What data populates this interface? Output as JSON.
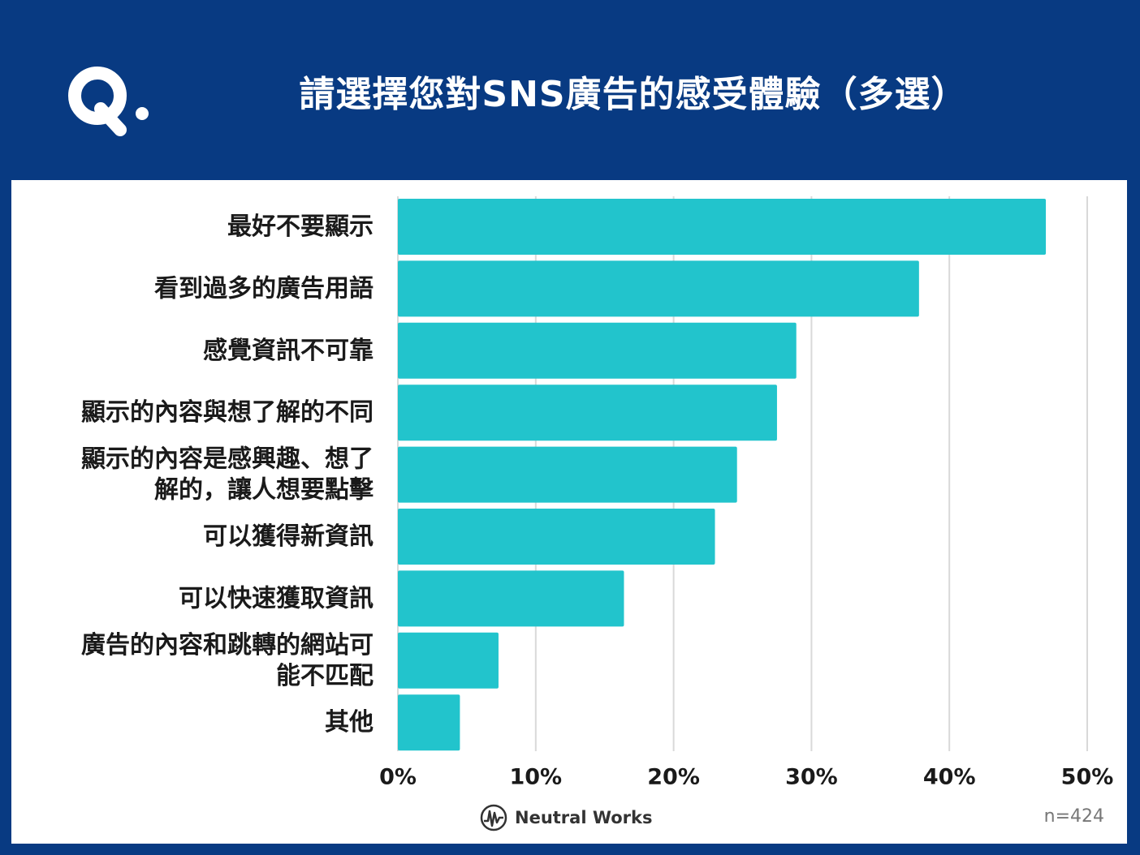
{
  "header": {
    "logo_text": "Q.",
    "title": "請選擇您對SNS廣告的感受體驗（多選）"
  },
  "footer": {
    "brand": "Neutral Works",
    "sample": "n=424"
  },
  "colors": {
    "background": "#083a82",
    "bar": "#22c4cc",
    "grid": "#d9d9d9",
    "panel": "#ffffff"
  },
  "chart_data": {
    "type": "bar",
    "orientation": "horizontal",
    "categories": [
      [
        "最好不要顯示"
      ],
      [
        "看到過多的廣告用語"
      ],
      [
        "感覺資訊不可靠"
      ],
      [
        "顯示的內容與想了解的不同"
      ],
      [
        "顯示的內容是感興趣、想了",
        "解的，讓人想要點擊"
      ],
      [
        "可以獲得新資訊"
      ],
      [
        "可以快速獲取資訊"
      ],
      [
        "廣告的內容和跳轉的網站可",
        "能不匹配"
      ],
      [
        "其他"
      ]
    ],
    "values": [
      47.0,
      37.8,
      28.9,
      27.5,
      24.6,
      23.0,
      16.4,
      7.3,
      4.5
    ],
    "xlim": [
      0,
      50
    ],
    "xticks": [
      0,
      10,
      20,
      30,
      40,
      50
    ],
    "tick_labels": [
      "0%",
      "10%",
      "20%",
      "30%",
      "40%",
      "50%"
    ],
    "grid": true
  }
}
